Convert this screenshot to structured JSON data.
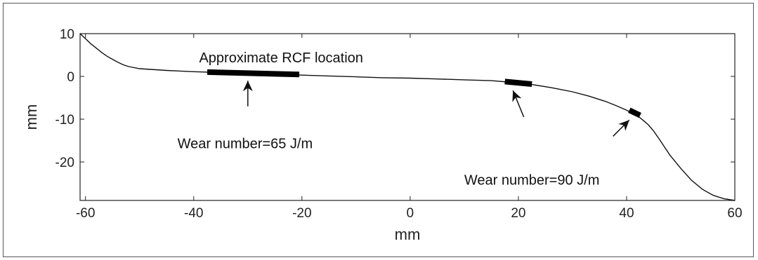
{
  "chart_data": {
    "type": "line",
    "title": "",
    "xlabel": "mm",
    "ylabel": "mm",
    "xlim": [
      -61,
      60
    ],
    "ylim": [
      -29,
      10
    ],
    "xticks": [
      -60,
      -40,
      -20,
      0,
      20,
      40,
      60
    ],
    "yticks": [
      10,
      0,
      -10,
      -20
    ],
    "grid": false,
    "series": [
      {
        "x": [
          -61,
          -60,
          -59,
          -58,
          -57,
          -56,
          -55,
          -54,
          -53,
          -52,
          -50,
          -45,
          -40,
          -35,
          -30,
          -25,
          -20,
          -15,
          -10,
          -5,
          0,
          5,
          10,
          15,
          18,
          20,
          23,
          26,
          30,
          33,
          36,
          38,
          40,
          42,
          43,
          44,
          45,
          46,
          47,
          48,
          50,
          52,
          54,
          56,
          58,
          60
        ],
        "y": [
          10,
          8.8,
          7.6,
          6.6,
          5.6,
          4.7,
          4,
          3.3,
          2.7,
          2.3,
          1.8,
          1.4,
          1.1,
          0.9,
          0.7,
          0.5,
          0.3,
          0.1,
          -0.1,
          -0.3,
          -0.4,
          -0.6,
          -0.8,
          -1,
          -1.3,
          -1.5,
          -2,
          -2.6,
          -3.6,
          -4.6,
          -5.8,
          -6.8,
          -7.9,
          -9.2,
          -10.2,
          -11.3,
          -12.8,
          -14.6,
          -16.5,
          -18.4,
          -21.5,
          -24.3,
          -26.4,
          -27.8,
          -28.6,
          -29
        ]
      }
    ],
    "highlights": [
      {
        "x_start": -37.5,
        "x_end": -20.5,
        "y_start": 1.0,
        "y_end": 0.45
      },
      {
        "x_start": 17.5,
        "x_end": 22.5,
        "y_start": -1.2,
        "y_end": -1.8
      },
      {
        "x_start": 40.5,
        "x_end": 42.5,
        "y_start": -7.9,
        "y_end": -9.1
      }
    ],
    "annotations": [
      {
        "text": "Approximate RCF location",
        "x": -39,
        "y": 3.3
      },
      {
        "text": "Wear number=65 J/m",
        "x": -43,
        "y": -16.8,
        "arrow_from": [
          -30,
          -7
        ],
        "arrow_to": [
          -30,
          -1
        ]
      },
      {
        "text": "Wear number=90 J/m",
        "x": 10,
        "y": -25.3,
        "arrow_from": [
          21,
          -9.5
        ],
        "arrow_to": [
          19,
          -3.3
        ]
      },
      {
        "text": "",
        "arrow_from": [
          37.5,
          -14
        ],
        "arrow_to": [
          40.5,
          -10.2
        ]
      }
    ]
  }
}
